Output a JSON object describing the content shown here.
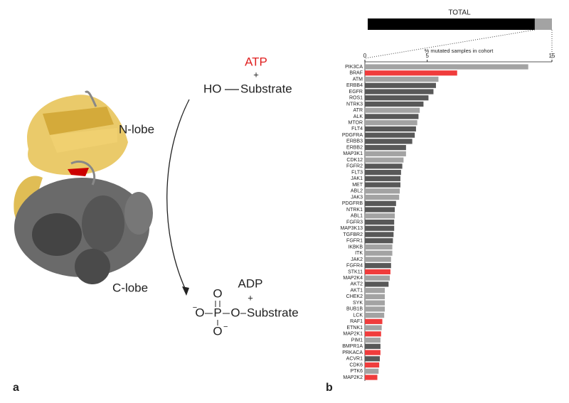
{
  "panel_a": {
    "label": "a",
    "n_lobe": "N-lobe",
    "c_lobe": "C-lobe",
    "reactant": "ATP",
    "plus": "+",
    "hydroxyl": "HO",
    "substrate": "Substrate",
    "product": "ADP",
    "phosphate_atoms": [
      "O",
      "P",
      "O",
      "O",
      "O"
    ],
    "charge": "−"
  },
  "panel_b": {
    "label": "b"
  },
  "chart_data": [
    {
      "type": "stacked-bar",
      "title": "TOTAL",
      "series": [
        {
          "color": "#000000",
          "values": [
            90.7
          ]
        },
        {
          "color": "#a3a3a3",
          "values": [
            9.3
          ]
        }
      ]
    },
    {
      "type": "hbar",
      "x_label": "% mutated samples in cohort",
      "xlim": [
        0,
        15
      ],
      "xticks": [
        0,
        5,
        15
      ],
      "categories": [
        "PIK3CA",
        "BRAF",
        "ATM",
        "ERBB4",
        "EGFR",
        "ROS1",
        "NTRK3",
        "ATR",
        "ALK",
        "MTOR",
        "FLT4",
        "PDGFRA",
        "ERBB3",
        "ERBB2",
        "MAP3K1",
        "CDK12",
        "FGFR2",
        "FLT3",
        "JAK1",
        "MET",
        "ABL2",
        "JAK3",
        "PDGFRB",
        "NTRK1",
        "ABL1",
        "FGFR3",
        "MAP3K13",
        "TGFBR2",
        "FGFR1",
        "IKBKB",
        "ITK",
        "JAK2",
        "FGFR4",
        "STK11",
        "MAP2K4",
        "AKT2",
        "AKT1",
        "CHEK2",
        "SYK",
        "BUB1B",
        "LCK",
        "RAF1",
        "ETNK1",
        "MAP2K1",
        "PIM1",
        "BMPR1A",
        "PRKACA",
        "ACVR1",
        "CDK6",
        "PTK6",
        "MAP2K2"
      ],
      "values": [
        13.1,
        7.4,
        5.9,
        5.7,
        5.5,
        5.1,
        4.7,
        4.4,
        4.3,
        4.2,
        4.1,
        4.0,
        3.8,
        3.3,
        3.3,
        3.1,
        3.0,
        2.9,
        2.85,
        2.85,
        2.8,
        2.75,
        2.5,
        2.4,
        2.4,
        2.35,
        2.35,
        2.3,
        2.25,
        2.2,
        2.2,
        2.1,
        2.1,
        2.05,
        2.0,
        1.9,
        1.6,
        1.6,
        1.6,
        1.6,
        1.55,
        1.4,
        1.35,
        1.3,
        1.25,
        1.25,
        1.25,
        1.2,
        1.15,
        1.1,
        1.0
      ],
      "colors": [
        "#a3a3a3",
        "#f03c3c",
        "#a3a3a3",
        "#585858",
        "#585858",
        "#585858",
        "#585858",
        "#a3a3a3",
        "#585858",
        "#a3a3a3",
        "#585858",
        "#585858",
        "#585858",
        "#585858",
        "#a3a3a3",
        "#a3a3a3",
        "#585858",
        "#585858",
        "#585858",
        "#585858",
        "#a3a3a3",
        "#a3a3a3",
        "#585858",
        "#585858",
        "#a3a3a3",
        "#585858",
        "#585858",
        "#585858",
        "#585858",
        "#a3a3a3",
        "#a3a3a3",
        "#a3a3a3",
        "#585858",
        "#f03c3c",
        "#a3a3a3",
        "#585858",
        "#a3a3a3",
        "#a3a3a3",
        "#a3a3a3",
        "#a3a3a3",
        "#a3a3a3",
        "#f03c3c",
        "#a3a3a3",
        "#f03c3c",
        "#a3a3a3",
        "#585858",
        "#f03c3c",
        "#585858",
        "#f03c3c",
        "#a3a3a3",
        "#f03c3c"
      ]
    }
  ]
}
